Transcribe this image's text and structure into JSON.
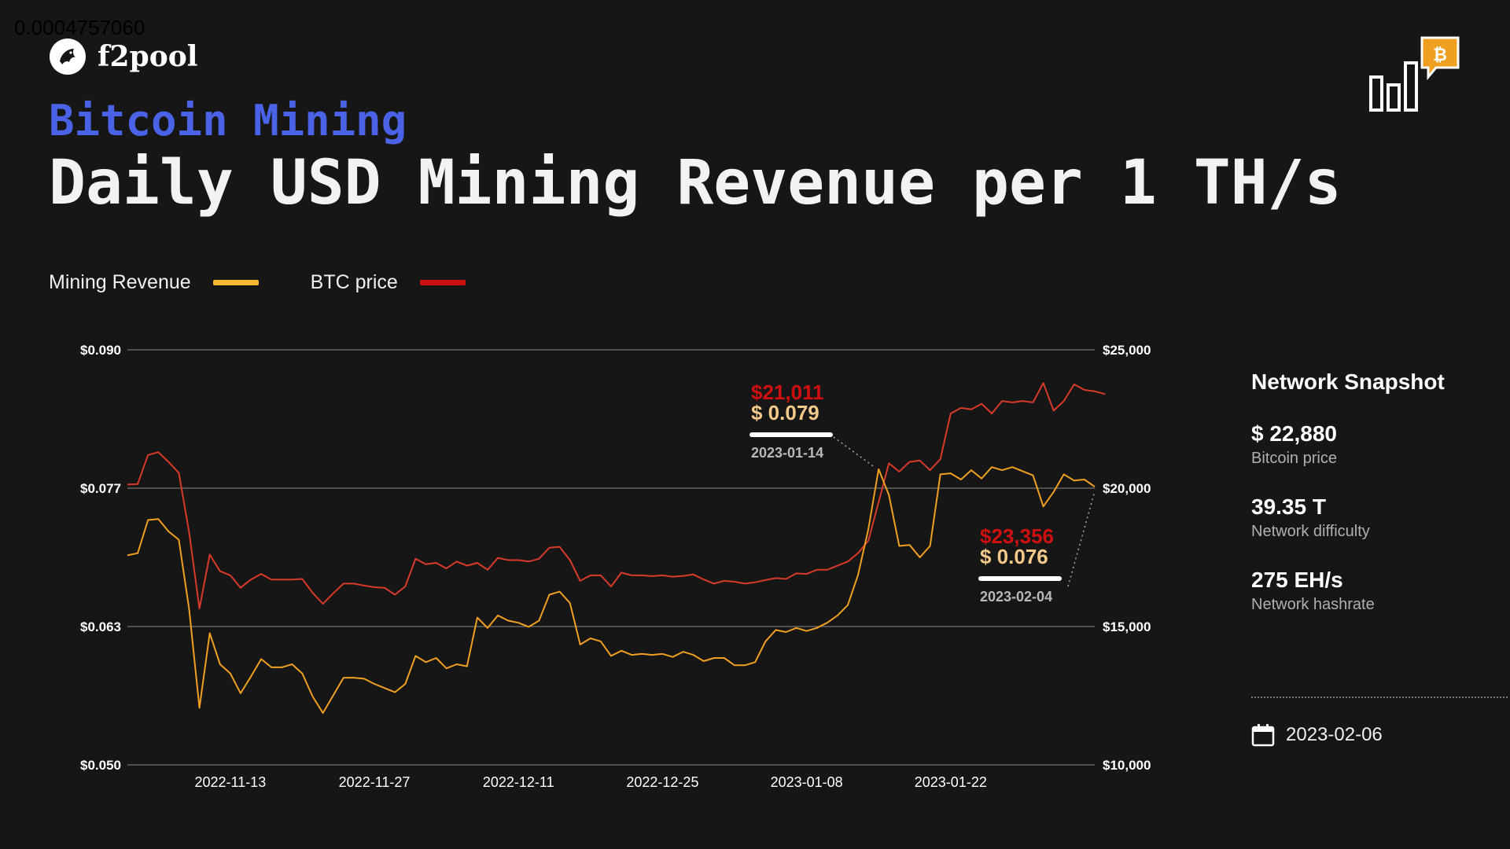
{
  "corner_value": "0.0004757060",
  "brand": {
    "name": "f2pool"
  },
  "header": {
    "subtitle": "Bitcoin Mining",
    "title": "Daily USD Mining Revenue per 1 TH/s"
  },
  "legend": [
    {
      "label": "Mining Revenue",
      "color": "#f5b630"
    },
    {
      "label": "BTC price",
      "color": "#cc1111"
    }
  ],
  "colors": {
    "revenue": "#f0a020",
    "price": "#d83a2a",
    "price_label": "#d01010",
    "revenue_label": "#f5c98a",
    "grid": "#888888"
  },
  "chart_data": {
    "type": "line",
    "x_start": "2022-11-03",
    "x_ticks": [
      "2022-11-13",
      "2022-11-27",
      "2022-12-11",
      "2022-12-25",
      "2023-01-08",
      "2023-01-22"
    ],
    "y_left": {
      "ticks": [
        "$0.050",
        "$0.063",
        "$0.077",
        "$0.090"
      ],
      "min": 0.05,
      "max": 0.09
    },
    "y_right": {
      "ticks": [
        "$10,000",
        "$15,000",
        "$20,000",
        "$25,000"
      ],
      "min": 10000,
      "max": 25000
    },
    "series": [
      {
        "name": "Mining Revenue",
        "axis": "left",
        "values": [
          0.0702,
          0.0704,
          0.0736,
          0.0737,
          0.0725,
          0.0717,
          0.065,
          0.0555,
          0.0627,
          0.0597,
          0.0588,
          0.0569,
          0.0585,
          0.0602,
          0.0594,
          0.0594,
          0.0597,
          0.0588,
          0.0566,
          0.055,
          0.0567,
          0.0584,
          0.0584,
          0.0583,
          0.0578,
          0.0574,
          0.057,
          0.0578,
          0.0605,
          0.0599,
          0.0603,
          0.0593,
          0.0597,
          0.0595,
          0.0642,
          0.0632,
          0.0644,
          0.0639,
          0.0637,
          0.0633,
          0.0639,
          0.0664,
          0.0667,
          0.0656,
          0.0616,
          0.0622,
          0.0619,
          0.0605,
          0.061,
          0.0606,
          0.0607,
          0.0606,
          0.0607,
          0.0604,
          0.0609,
          0.0606,
          0.06,
          0.0603,
          0.0603,
          0.0596,
          0.0596,
          0.0599,
          0.0619,
          0.063,
          0.0628,
          0.0632,
          0.0629,
          0.0632,
          0.0637,
          0.0644,
          0.0654,
          0.0683,
          0.0727,
          0.0785,
          0.076,
          0.0711,
          0.0712,
          0.07,
          0.0711,
          0.078,
          0.0781,
          0.0775,
          0.0784,
          0.0776,
          0.0787,
          0.0784,
          0.0787,
          0.0783,
          0.0779,
          0.0749,
          0.0763,
          0.078,
          0.0774,
          0.0775,
          0.0768
        ]
      },
      {
        "name": "BTC price",
        "axis": "right",
        "values": [
          20130,
          20150,
          21200,
          21300,
          20950,
          20550,
          18400,
          15650,
          17600,
          17000,
          16850,
          16400,
          16700,
          16900,
          16700,
          16700,
          16700,
          16720,
          16220,
          15820,
          16200,
          16550,
          16550,
          16480,
          16420,
          16400,
          16150,
          16450,
          17450,
          17250,
          17300,
          17100,
          17350,
          17200,
          17300,
          17050,
          17480,
          17400,
          17400,
          17350,
          17450,
          17850,
          17880,
          17400,
          16650,
          16850,
          16850,
          16450,
          16950,
          16850,
          16850,
          16820,
          16850,
          16800,
          16830,
          16880,
          16700,
          16550,
          16650,
          16620,
          16550,
          16600,
          16680,
          16750,
          16720,
          16920,
          16900,
          17050,
          17050,
          17200,
          17350,
          17650,
          18100,
          19500,
          20900,
          20600,
          20950,
          21000,
          20650,
          21050,
          22700,
          22900,
          22850,
          23050,
          22700,
          23150,
          23100,
          23150,
          23100,
          23800,
          22800,
          23150,
          23750,
          23550,
          23500,
          23400
        ]
      }
    ],
    "annotations": [
      {
        "price": "$21,011",
        "revenue": "$ 0.079",
        "date": "2023-01-14"
      },
      {
        "price": "$23,356",
        "revenue": "$ 0.076",
        "date": "2023-02-04"
      }
    ]
  },
  "snapshot": {
    "title": "Network Snapshot",
    "stats": [
      {
        "value": "$ 22,880",
        "label": "Bitcoin price"
      },
      {
        "value": "39.35 T",
        "label": "Network difficulty"
      },
      {
        "value": "275 EH/s",
        "label": "Network hashrate"
      }
    ],
    "date": "2023-02-06",
    "calendar_icon": "calendar-icon"
  },
  "brand_icon": {
    "name": "bitcoin-chart-icon",
    "accent": "#f0a020",
    "symbol": "₿"
  }
}
